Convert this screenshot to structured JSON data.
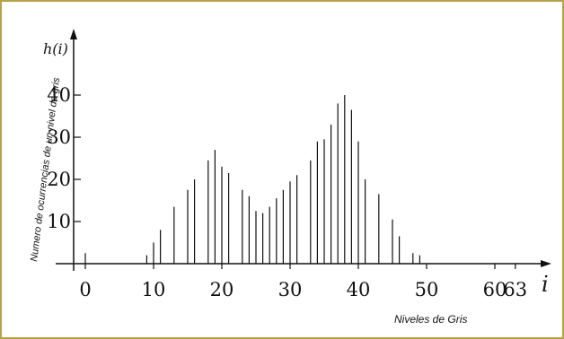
{
  "chart_data": {
    "type": "bar",
    "title": "",
    "xlabel": "Niveles de Gris",
    "x_axis_symbol": "i",
    "ylabel": "Numero de ocurrencias de un nivel de gris",
    "y_axis_symbol": "h(i)",
    "xlim": [
      -2,
      66
    ],
    "ylim": [
      0,
      45
    ],
    "x_ticks": [
      "0",
      "10",
      "20",
      "30",
      "40",
      "50",
      "60",
      "63"
    ],
    "y_ticks": [
      "10",
      "20",
      "30",
      "40"
    ],
    "grid": false,
    "series": [
      {
        "x": [
          0,
          9,
          10,
          11,
          13,
          15,
          16,
          18,
          19,
          20,
          21,
          23,
          24,
          25,
          26,
          27,
          28,
          29,
          30,
          31,
          33,
          34,
          35,
          36,
          37,
          38,
          39,
          40,
          41,
          43,
          45,
          46,
          48,
          49
        ],
        "values": [
          2.5,
          2,
          5,
          8,
          13.5,
          17.5,
          20,
          24.5,
          27,
          23,
          21.5,
          17.5,
          16,
          12.5,
          12,
          13.5,
          15.5,
          17.5,
          19.5,
          21,
          24.5,
          29,
          29.5,
          33,
          38,
          40,
          36.5,
          29,
          20,
          16.5,
          10.5,
          6.5,
          2.5,
          2
        ]
      }
    ]
  }
}
